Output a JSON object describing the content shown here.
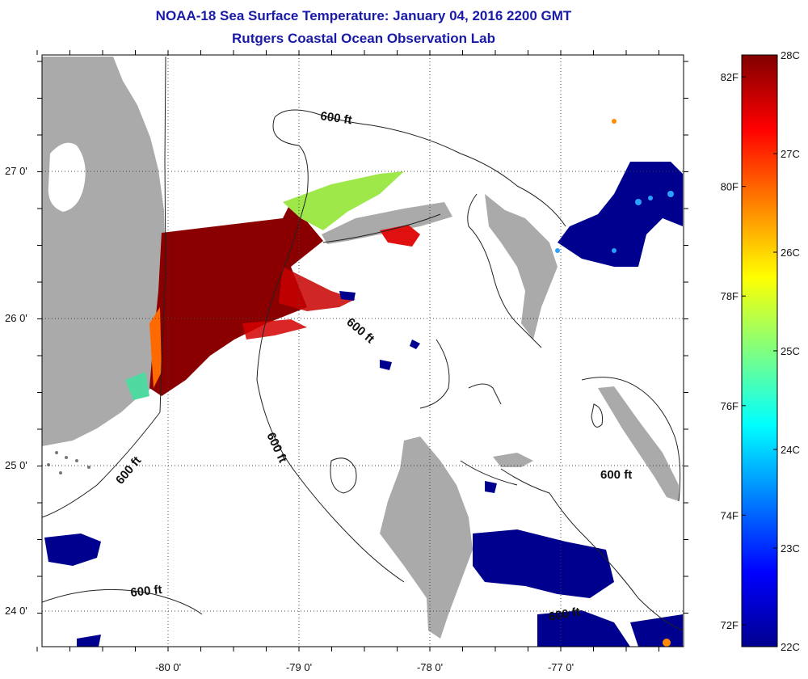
{
  "title_line1": "NOAA-18 Sea Surface Temperature:  January 04, 2016 2200 GMT",
  "title_line2": "Rutgers Coastal Ocean Observation Lab",
  "lat_labels": [
    "27 0'",
    "26 0'",
    "25 0'",
    "24 0'"
  ],
  "lon_labels": [
    "-80 0'",
    "-79 0'",
    "-78 0'",
    "-77 0'"
  ],
  "contour_label": "600 ft",
  "colorbar": {
    "celsius_labels": [
      "28C",
      "27C",
      "26C",
      "25C",
      "24C",
      "23C",
      "22C"
    ],
    "fahrenheit_labels": [
      "82F",
      "80F",
      "78F",
      "76F",
      "74F",
      "72F"
    ],
    "celsius_range": [
      22,
      28
    ],
    "fahrenheit_range": [
      72,
      82.4
    ],
    "colormap": "jet",
    "colors": [
      "#00008f",
      "#0000ff",
      "#00ffff",
      "#ffff00",
      "#ff0000",
      "#800000"
    ]
  },
  "colors": {
    "land": "#aaaaaa",
    "title": "#1a1aa8"
  }
}
